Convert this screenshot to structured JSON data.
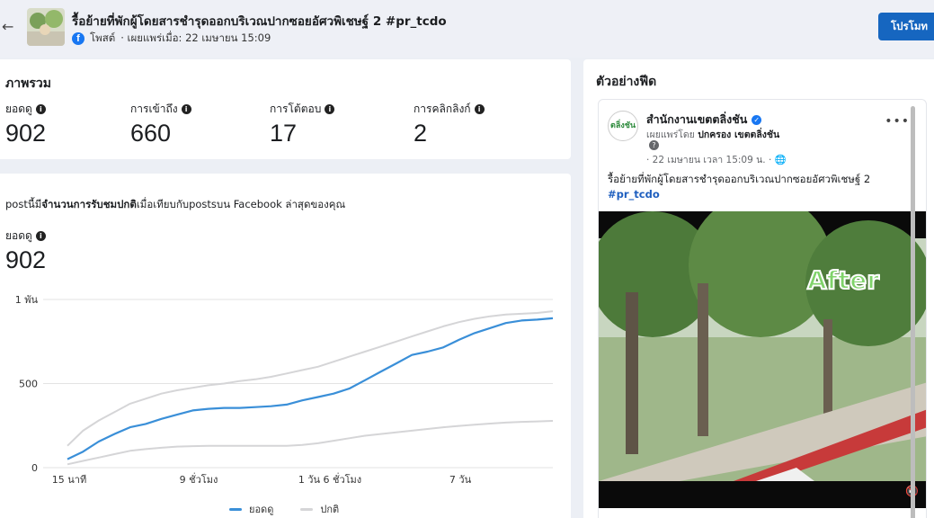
{
  "header": {
    "back_icon": "back-arrow-icon",
    "post_title": "รื้อย้ายที่พักผู้โดยสารชำรุดออกบริเวณปากซอยอัศวพิเชษฐ์ 2 #pr_tcdo",
    "source_label": "โพสต์",
    "published_label": "· เผยแพร่เมื่อ: 22 เมษายน 15:09",
    "promote_label": "โปรโมท"
  },
  "overview": {
    "title": "ภาพรวม",
    "metrics": [
      {
        "label": "ยอดดู",
        "value": "902"
      },
      {
        "label": "การเข้าถึง",
        "value": "660"
      },
      {
        "label": "การโต้ตอบ",
        "value": "17"
      },
      {
        "label": "การคลิกลิงก์",
        "value": "2"
      }
    ]
  },
  "performance": {
    "compare_prefix": "postนี้มี",
    "compare_bold": "จำนวนการรับชมปกติ",
    "compare_suffix": "เมื่อเทียบกับpostsบน Facebook ล่าสุดของคุณ",
    "metric_label": "ยอดดู",
    "metric_value": "902"
  },
  "chart_data": {
    "type": "line",
    "x_tick_labels": [
      "15 นาที",
      "9 ชั่วโมง",
      "1 วัน 6 ชั่วโมง",
      "7 วัน"
    ],
    "y_tick_labels": [
      "0",
      "500",
      "1 พัน"
    ],
    "ylim": [
      0,
      1000
    ],
    "grid": true,
    "legend_placement": "bottom",
    "series": [
      {
        "name": "ยอดดู",
        "color": "#3a8fd8",
        "values": [
          50,
          95,
          155,
          200,
          240,
          260,
          290,
          315,
          340,
          350,
          355,
          355,
          360,
          365,
          375,
          400,
          420,
          440,
          470,
          520,
          570,
          620,
          670,
          690,
          715,
          760,
          800,
          830,
          860,
          875,
          880,
          888
        ]
      },
      {
        "name": "ปกติ",
        "color": "#d5d5d7",
        "values": [
          130,
          220,
          280,
          330,
          380,
          410,
          440,
          460,
          475,
          490,
          500,
          515,
          525,
          540,
          560,
          580,
          600,
          630,
          660,
          690,
          720,
          750,
          780,
          810,
          840,
          865,
          885,
          900,
          910,
          915,
          920,
          930
        ]
      },
      {
        "name": "",
        "color": "#d5d5d7",
        "values": [
          20,
          40,
          60,
          80,
          100,
          110,
          118,
          125,
          128,
          130,
          130,
          130,
          130,
          130,
          130,
          135,
          145,
          160,
          175,
          190,
          200,
          210,
          220,
          230,
          240,
          248,
          255,
          262,
          268,
          272,
          275,
          278
        ]
      }
    ]
  },
  "preview": {
    "title": "ตัวอย่างฟีด",
    "avatar_text": "ตลิ่งชัน",
    "page_name": "สำนักงานเขตตลิ่งชัน",
    "published_by_prefix": "เผยแพร่โดย",
    "published_by_name": "ปกครอง เขตตลิ่งชัน",
    "post_time": "· 22 เมษายน เวลา 15:09 น. · ",
    "post_text": "รื้อย้ายที่พักผู้โดยสารชำรุดออกบริเวณปากซอยอัศวพิเชษฐ์ 2",
    "hashtag": "#pr_tcdo",
    "video_overlay_text": "After",
    "more_icon": "•••"
  }
}
